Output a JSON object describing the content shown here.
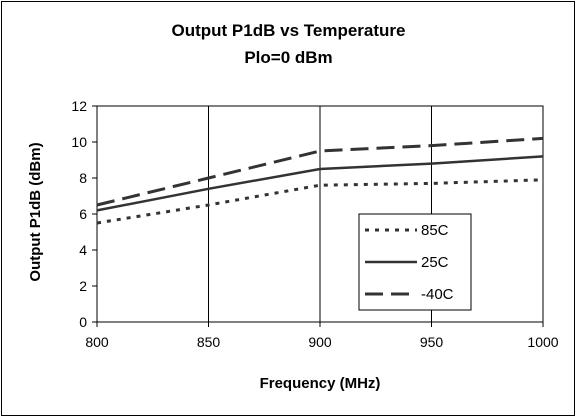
{
  "chart_data": {
    "type": "line",
    "title": "Output P1dB vs Temperature",
    "subtitle": "Plo=0 dBm",
    "xlabel": "Frequency (MHz)",
    "ylabel": "Output P1dB (dBm)",
    "xlim": [
      800,
      1000
    ],
    "ylim": [
      0,
      12
    ],
    "xticks": [
      800,
      850,
      900,
      950,
      1000
    ],
    "yticks": [
      0,
      2,
      4,
      6,
      8,
      10,
      12
    ],
    "grid": "vertical",
    "legend_position": "center-right",
    "series": [
      {
        "name": "85C",
        "style": "dotted",
        "x": [
          800,
          850,
          900,
          950,
          1000
        ],
        "y": [
          5.5,
          6.5,
          7.6,
          7.7,
          7.9
        ]
      },
      {
        "name": "25C",
        "style": "solid",
        "x": [
          800,
          850,
          900,
          950,
          1000
        ],
        "y": [
          6.2,
          7.4,
          8.5,
          8.8,
          9.2
        ]
      },
      {
        "name": "-40C",
        "style": "dashed",
        "x": [
          800,
          850,
          900,
          950,
          1000
        ],
        "y": [
          6.5,
          8.0,
          9.5,
          9.8,
          10.2
        ]
      }
    ],
    "line_color": "#333333"
  }
}
